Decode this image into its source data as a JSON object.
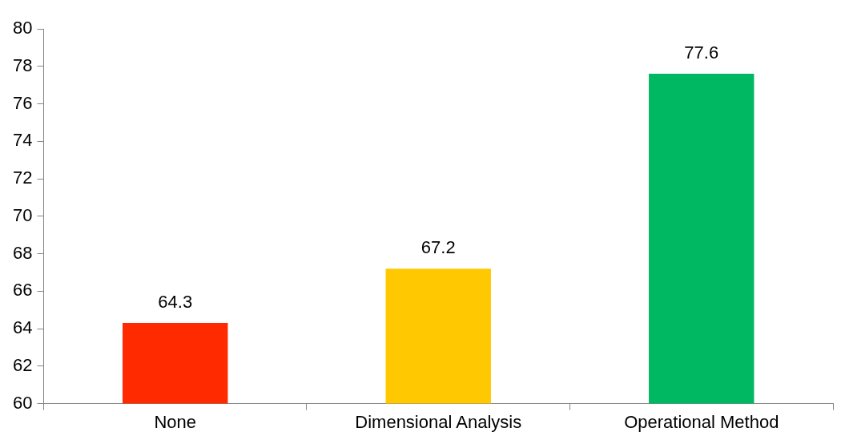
{
  "chart_data": {
    "type": "bar",
    "categories": [
      "None",
      "Dimensional Analysis",
      "Operational Method"
    ],
    "values": [
      64.3,
      67.2,
      77.6
    ],
    "colors": [
      "#ff2a00",
      "#ffc800",
      "#00b862"
    ],
    "ylim": [
      60,
      80
    ],
    "yticks": [
      60,
      62,
      64,
      66,
      68,
      70,
      72,
      74,
      76,
      78,
      80
    ],
    "grid": false,
    "legend": false,
    "data_labels": true
  }
}
